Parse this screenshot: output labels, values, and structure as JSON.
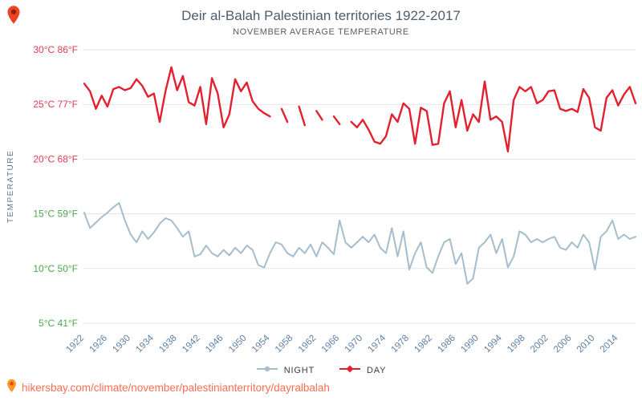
{
  "header": {
    "title": "Deir al-Balah Palestinian territories 1922-2017",
    "subtitle": "NOVEMBER AVERAGE TEMPERATURE"
  },
  "chart_data": {
    "type": "line",
    "title": "Deir al-Balah Palestinian territories 1922-2017",
    "subtitle": "NOVEMBER AVERAGE TEMPERATURE",
    "grid": true,
    "legend_position": "bottom",
    "x": [
      1922,
      1923,
      1924,
      1925,
      1926,
      1927,
      1928,
      1929,
      1930,
      1931,
      1932,
      1933,
      1934,
      1935,
      1936,
      1937,
      1938,
      1939,
      1940,
      1941,
      1942,
      1943,
      1944,
      1945,
      1946,
      1947,
      1948,
      1949,
      1950,
      1951,
      1952,
      1953,
      1954,
      1955,
      1956,
      1957,
      1958,
      1959,
      1960,
      1961,
      1962,
      1963,
      1964,
      1965,
      1966,
      1967,
      1968,
      1969,
      1970,
      1971,
      1972,
      1973,
      1974,
      1975,
      1976,
      1977,
      1978,
      1979,
      1980,
      1981,
      1982,
      1983,
      1984,
      1985,
      1986,
      1987,
      1988,
      1989,
      1990,
      1991,
      1992,
      1993,
      1994,
      1995,
      1996,
      1997,
      1998,
      1999,
      2000,
      2001,
      2002,
      2003,
      2004,
      2005,
      2006,
      2007,
      2008,
      2009,
      2010,
      2011,
      2012,
      2013,
      2014,
      2015,
      2016,
      2017
    ],
    "x_label_ticks": [
      1922,
      1926,
      1930,
      1934,
      1938,
      1942,
      1946,
      1950,
      1954,
      1958,
      1962,
      1966,
      1970,
      1974,
      1978,
      1982,
      1986,
      1990,
      1994,
      1998,
      2002,
      2006,
      2010,
      2014
    ],
    "y_axis": {
      "title": "TEMPERATURE",
      "range": [
        5,
        30
      ],
      "ticks": [
        {
          "value": 30,
          "label": "30°C 86°F",
          "color": "#e13b55"
        },
        {
          "value": 25,
          "label": "25°C 77°F",
          "color": "#e13b55"
        },
        {
          "value": 20,
          "label": "20°C 68°F",
          "color": "#e13b55"
        },
        {
          "value": 15,
          "label": "15°C 59°F",
          "color": "#4aa94e"
        },
        {
          "value": 10,
          "label": "10°C 50°F",
          "color": "#4aa94e"
        },
        {
          "value": 5,
          "label": "5°C 41°F",
          "color": "#4aa94e"
        }
      ]
    },
    "series": [
      {
        "name": "NIGHT",
        "color": "#a5bdcc",
        "marker": "circle",
        "values": [
          15.1,
          13.7,
          14.2,
          14.7,
          15.1,
          15.6,
          16.0,
          14.4,
          13.1,
          12.4,
          13.4,
          12.7,
          13.3,
          14.1,
          14.6,
          14.4,
          13.7,
          12.9,
          13.4,
          11.1,
          11.3,
          12.1,
          11.4,
          11.1,
          11.7,
          11.2,
          11.9,
          11.4,
          12.1,
          11.7,
          10.3,
          10.1,
          11.4,
          12.4,
          12.2,
          11.4,
          11.1,
          11.9,
          11.4,
          12.2,
          11.1,
          12.4,
          11.9,
          11.3,
          14.4,
          12.4,
          11.9,
          12.4,
          12.9,
          12.4,
          13.1,
          11.9,
          11.4,
          13.7,
          11.1,
          13.4,
          9.9,
          11.4,
          12.4,
          10.1,
          9.6,
          11.1,
          12.4,
          12.7,
          10.4,
          11.4,
          8.6,
          9.1,
          11.9,
          12.4,
          13.1,
          11.4,
          12.7,
          10.1,
          11.1,
          13.4,
          13.1,
          12.4,
          12.7,
          12.4,
          12.7,
          12.9,
          11.9,
          11.7,
          12.4,
          11.9,
          13.1,
          12.4,
          9.9,
          12.9,
          13.4,
          14.4,
          12.7,
          13.1,
          12.7,
          12.9
        ]
      },
      {
        "name": "DAY",
        "color": "#e3202f",
        "marker": "diamond",
        "values": [
          26.9,
          26.2,
          24.6,
          25.8,
          24.8,
          26.4,
          26.6,
          26.3,
          26.5,
          27.3,
          26.7,
          25.7,
          26.0,
          23.4,
          26.2,
          28.4,
          26.3,
          27.6,
          25.2,
          24.9,
          26.6,
          23.2,
          27.4,
          26.0,
          22.9,
          24.1,
          27.3,
          26.2,
          27.0,
          25.3,
          24.6,
          24.2,
          23.9,
          null,
          24.6,
          23.4,
          null,
          24.8,
          23.1,
          null,
          24.4,
          23.6,
          null,
          23.9,
          23.2,
          null,
          23.4,
          22.9,
          23.6,
          22.7,
          21.6,
          21.4,
          22.1,
          24.1,
          23.4,
          25.1,
          24.6,
          21.4,
          24.7,
          24.4,
          21.3,
          21.4,
          25.1,
          26.2,
          22.9,
          25.4,
          22.6,
          24.1,
          23.4,
          27.1,
          23.6,
          23.9,
          23.4,
          20.7,
          25.4,
          26.6,
          26.2,
          26.6,
          25.1,
          25.4,
          26.2,
          26.3,
          24.6,
          24.4,
          24.6,
          24.3,
          26.4,
          25.6,
          22.9,
          22.6,
          25.6,
          26.3,
          24.9,
          25.9,
          26.6,
          25.1
        ]
      }
    ]
  },
  "footer": {
    "link_text": "hikersbay.com/climate/november/palestinianterritory/dayralbalah"
  }
}
